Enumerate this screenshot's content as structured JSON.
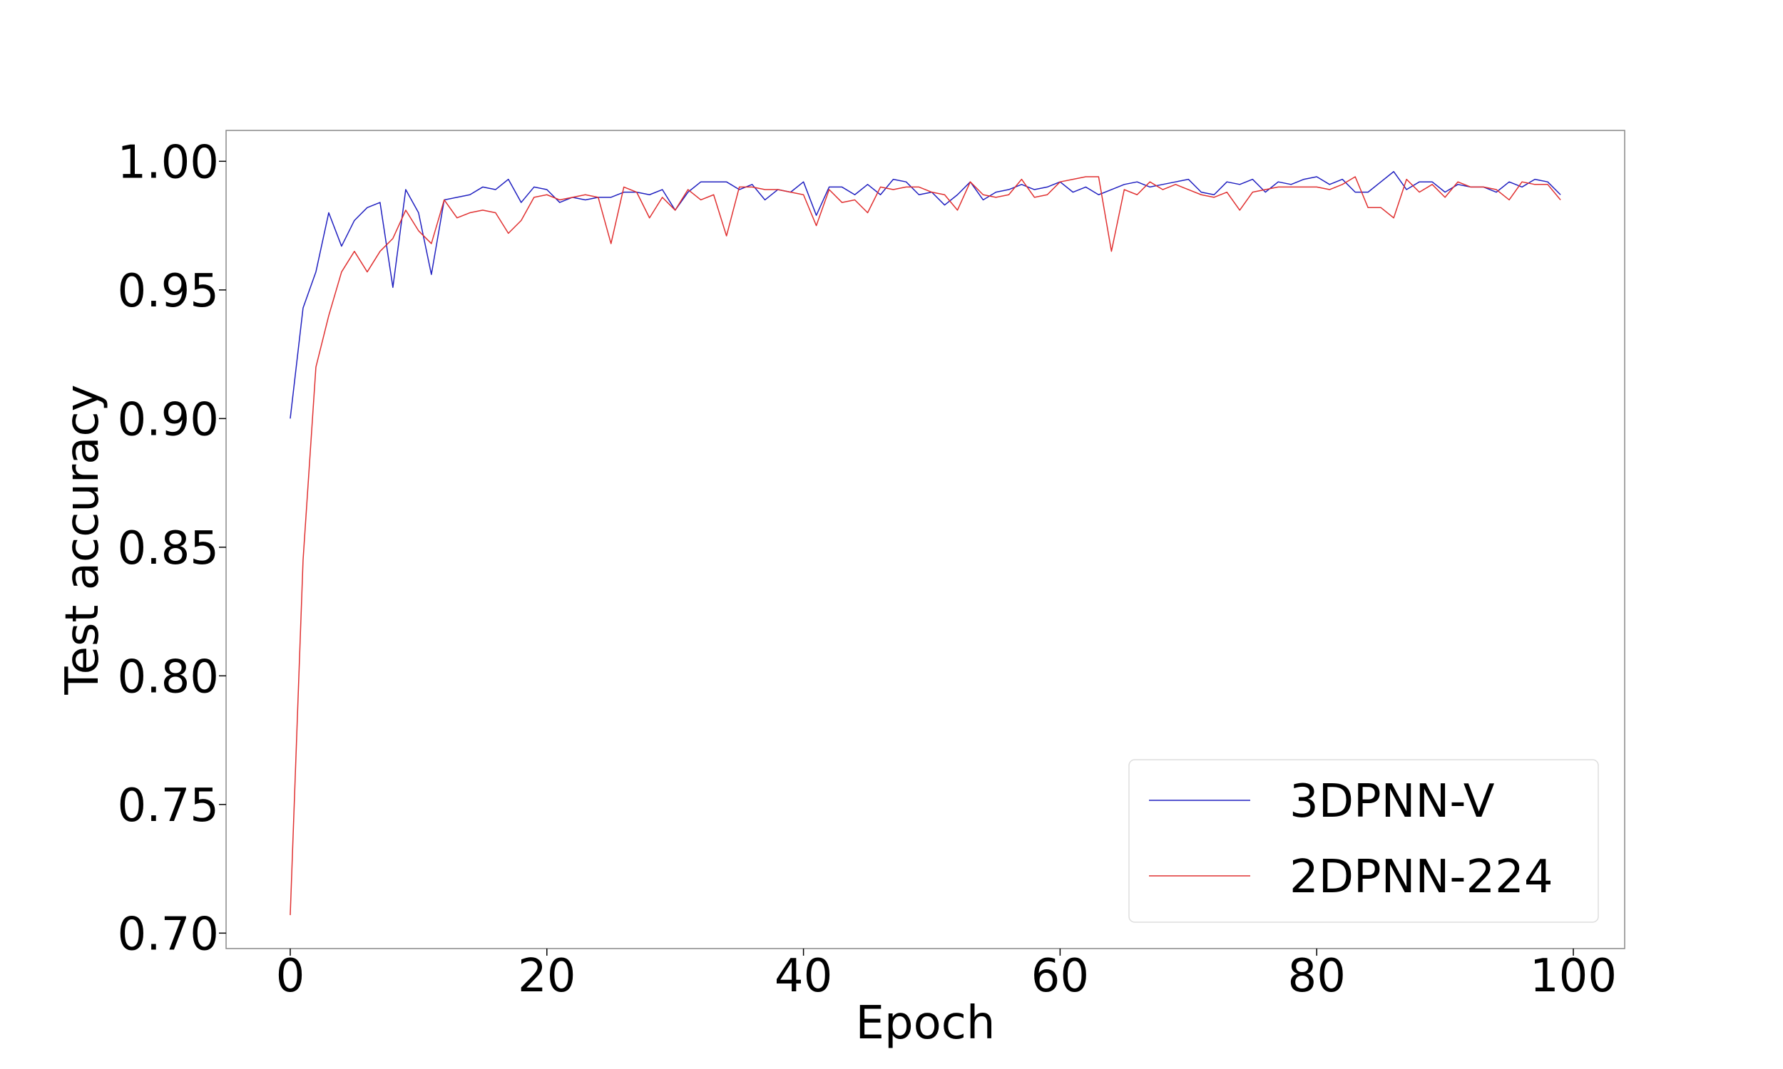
{
  "chart_data": {
    "type": "line",
    "xlabel": "Epoch",
    "ylabel": "Test accuracy",
    "xlim": [
      -5,
      104
    ],
    "ylim": [
      0.694,
      1.012
    ],
    "xticks": [
      0,
      20,
      40,
      60,
      80,
      100
    ],
    "xtick_labels": [
      "0",
      "20",
      "40",
      "60",
      "80",
      "100"
    ],
    "yticks": [
      0.7,
      0.75,
      0.8,
      0.85,
      0.9,
      0.95,
      1.0
    ],
    "ytick_labels": [
      "0.70",
      "0.75",
      "0.80",
      "0.85",
      "0.90",
      "0.95",
      "1.00"
    ],
    "grid": false,
    "legend_position": "lower-right",
    "series": [
      {
        "name": "3DPNN-V",
        "color": "#2020c0",
        "values": [
          0.9,
          0.943,
          0.957,
          0.98,
          0.967,
          0.977,
          0.982,
          0.984,
          0.951,
          0.989,
          0.98,
          0.956,
          0.985,
          0.986,
          0.987,
          0.99,
          0.989,
          0.993,
          0.984,
          0.99,
          0.989,
          0.984,
          0.986,
          0.985,
          0.986,
          0.986,
          0.988,
          0.988,
          0.987,
          0.989,
          0.981,
          0.988,
          0.992,
          0.992,
          0.992,
          0.989,
          0.991,
          0.985,
          0.989,
          0.988,
          0.992,
          0.979,
          0.99,
          0.99,
          0.987,
          0.991,
          0.987,
          0.993,
          0.992,
          0.987,
          0.988,
          0.983,
          0.987,
          0.992,
          0.985,
          0.988,
          0.989,
          0.991,
          0.989,
          0.99,
          0.992,
          0.988,
          0.99,
          0.987,
          0.989,
          0.991,
          0.992,
          0.99,
          0.991,
          0.992,
          0.993,
          0.988,
          0.987,
          0.992,
          0.991,
          0.993,
          0.988,
          0.992,
          0.991,
          0.993,
          0.994,
          0.991,
          0.993,
          0.988,
          0.988,
          0.992,
          0.996,
          0.989,
          0.992,
          0.992,
          0.988,
          0.991,
          0.99,
          0.99,
          0.988,
          0.992,
          0.99,
          0.993,
          0.992,
          0.987
        ]
      },
      {
        "name": "2DPNN-224",
        "color": "#e03030",
        "values": [
          0.707,
          0.845,
          0.92,
          0.94,
          0.957,
          0.965,
          0.957,
          0.965,
          0.97,
          0.981,
          0.973,
          0.968,
          0.985,
          0.978,
          0.98,
          0.981,
          0.98,
          0.972,
          0.977,
          0.986,
          0.987,
          0.985,
          0.986,
          0.987,
          0.986,
          0.968,
          0.99,
          0.988,
          0.978,
          0.986,
          0.981,
          0.989,
          0.985,
          0.987,
          0.971,
          0.99,
          0.99,
          0.989,
          0.989,
          0.988,
          0.987,
          0.975,
          0.989,
          0.984,
          0.985,
          0.98,
          0.99,
          0.989,
          0.99,
          0.99,
          0.988,
          0.987,
          0.981,
          0.992,
          0.987,
          0.986,
          0.987,
          0.993,
          0.986,
          0.987,
          0.992,
          0.993,
          0.994,
          0.994,
          0.965,
          0.989,
          0.987,
          0.992,
          0.989,
          0.991,
          0.989,
          0.987,
          0.986,
          0.988,
          0.981,
          0.988,
          0.989,
          0.99,
          0.99,
          0.99,
          0.99,
          0.989,
          0.991,
          0.994,
          0.982,
          0.982,
          0.978,
          0.993,
          0.988,
          0.991,
          0.986,
          0.992,
          0.99,
          0.99,
          0.989,
          0.985,
          0.992,
          0.991,
          0.991,
          0.985
        ]
      }
    ]
  }
}
